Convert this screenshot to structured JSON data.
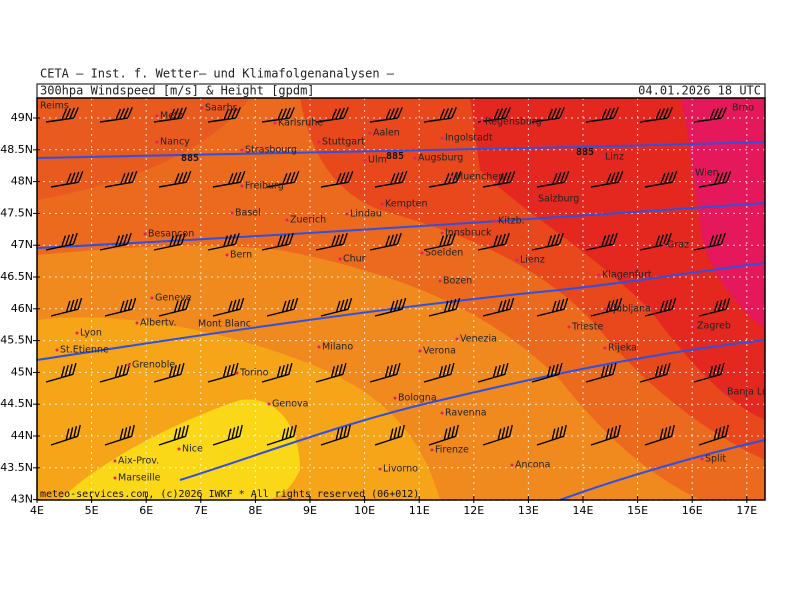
{
  "header": {
    "title": "CETA — Inst. f. Wetter— und Klimafolgenanalysen —",
    "product": "300hpa Windspeed [m/s] & Height [gpdm]",
    "date": "04.01.2026 18 UTC"
  },
  "footer": "meteo-services.com, (c)2026 IWKF * All rights reserved (06+012)",
  "lat_labels": [
    "49N",
    "48.5N",
    "48N",
    "47.5N",
    "47N",
    "46.5N",
    "46N",
    "45.5N",
    "45N",
    "44.5N",
    "44N",
    "43.5N",
    "43N"
  ],
  "lon_labels": [
    "4E",
    "5E",
    "6E",
    "7E",
    "8E",
    "9E",
    "10E",
    "11E",
    "12E",
    "13E",
    "14E",
    "15E",
    "16E",
    "17E"
  ],
  "cities": [
    "Reims",
    "Metz",
    "Saarbr.",
    "Karlsruhe",
    "Stuttgart",
    "Aalen",
    "Ingolstadt",
    "Regensburg",
    "Nancy",
    "Strasbourg",
    "Ulm",
    "Augsburg",
    "Linz",
    "Freiburg",
    "Muenchen",
    "Wien",
    "Salzburg",
    "Brno",
    "Basel",
    "Zuerich",
    "Lindau",
    "Kempten",
    "Innsbruck",
    "Kitzb.",
    "Besancon",
    "Bern",
    "Chur",
    "Soelden",
    "Lienz",
    "Graz",
    "Geneve",
    "Bozen",
    "Klagenfurt",
    "Lyon",
    "Albertv.",
    "Ljubljana",
    "Zagreb",
    "Trieste",
    "St.Etienne",
    "Milano",
    "Verona",
    "Venezia",
    "Rijeka",
    "Grenoble",
    "Torino",
    "Genova",
    "Bologna",
    "Ravenna",
    "Banja Luka",
    "Nice",
    "Aix-Prov.",
    "Marseille",
    "Firenze",
    "Ancona",
    "Livorno",
    "Split"
  ],
  "contour_labels": [
    "885",
    "885",
    "885"
  ],
  "feature_labels": [
    "Mont Blanc"
  ]
}
